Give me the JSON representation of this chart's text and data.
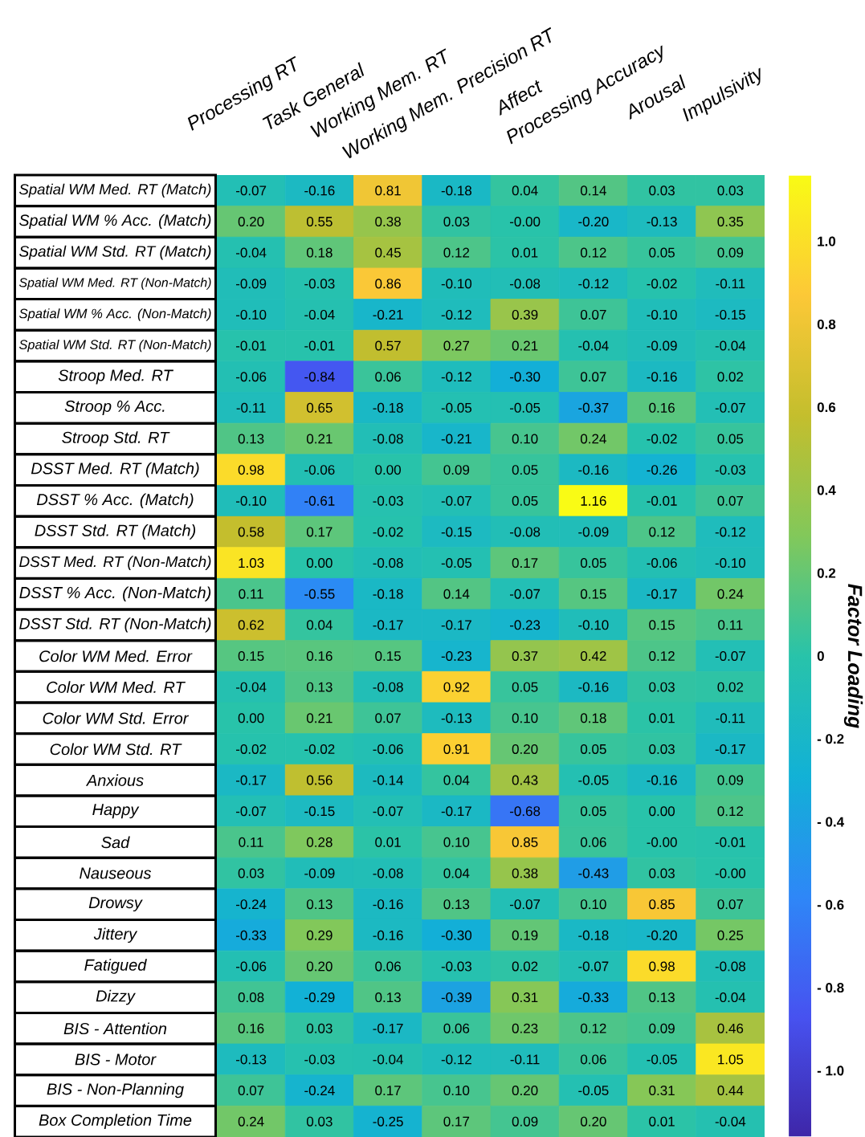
{
  "chart_data": {
    "type": "heatmap",
    "clabel": "Factor Loading",
    "categories": [
      "Processing RT",
      "Task General",
      "Working Mem. RT",
      "Working Mem. Precision RT",
      "Affect",
      "Processing Accuracy",
      "Arousal",
      "Impulsivity"
    ],
    "y_categories": [
      "Spatial WM Med. RT (Match)",
      "Spatial WM % Acc. (Match)",
      "Spatial WM Std. RT (Match)",
      "Spatial WM Med. RT (Non-Match)",
      "Spatial WM % Acc. (Non-Match)",
      "Spatial WM Std. RT (Non-Match)",
      "Stroop Med. RT",
      "Stroop % Acc.",
      "Stroop Std. RT",
      "DSST Med. RT (Match)",
      "DSST % Acc. (Match)",
      "DSST Std. RT (Match)",
      "DSST Med. RT (Non-Match)",
      "DSST % Acc. (Non-Match)",
      "DSST Std. RT (Non-Match)",
      "Color WM Med. Error",
      "Color WM Med. RT",
      "Color WM Std. Error",
      "Color WM Std. RT",
      "Anxious",
      "Happy",
      "Sad",
      "Nauseous",
      "Drowsy",
      "Jittery",
      "Fatigued",
      "Dizzy",
      "BIS - Attention",
      "BIS - Motor",
      "BIS - Non-Planning",
      "Box Completion Time"
    ],
    "cells": [
      [
        -0.07,
        -0.16,
        0.81,
        -0.18,
        0.04,
        0.14,
        0.03,
        0.03
      ],
      [
        0.2,
        0.55,
        0.38,
        0.03,
        0.0,
        -0.2,
        -0.13,
        0.35
      ],
      [
        -0.04,
        0.18,
        0.45,
        0.12,
        0.01,
        0.12,
        0.05,
        0.09
      ],
      [
        -0.09,
        -0.03,
        0.86,
        -0.1,
        -0.08,
        -0.12,
        -0.02,
        -0.11
      ],
      [
        -0.1,
        -0.04,
        -0.21,
        -0.12,
        0.39,
        0.07,
        -0.1,
        -0.15
      ],
      [
        -0.01,
        -0.01,
        0.57,
        0.27,
        0.21,
        -0.04,
        -0.09,
        -0.04
      ],
      [
        -0.06,
        -0.84,
        0.06,
        -0.12,
        -0.3,
        0.07,
        -0.16,
        0.02
      ],
      [
        -0.11,
        0.65,
        -0.18,
        -0.05,
        -0.05,
        -0.37,
        0.16,
        -0.07
      ],
      [
        0.13,
        0.21,
        -0.08,
        -0.21,
        0.1,
        0.24,
        -0.02,
        0.05
      ],
      [
        0.98,
        -0.06,
        0.0,
        0.09,
        0.05,
        -0.16,
        -0.26,
        -0.03
      ],
      [
        -0.1,
        -0.61,
        -0.03,
        -0.07,
        0.05,
        1.16,
        -0.01,
        0.07
      ],
      [
        0.58,
        0.17,
        -0.02,
        -0.15,
        -0.08,
        -0.09,
        0.12,
        -0.12
      ],
      [
        1.03,
        0.0,
        -0.08,
        -0.05,
        0.17,
        0.05,
        -0.06,
        -0.1
      ],
      [
        0.11,
        -0.55,
        -0.18,
        0.14,
        -0.07,
        0.15,
        -0.17,
        0.24
      ],
      [
        0.62,
        0.04,
        -0.17,
        -0.17,
        -0.23,
        -0.1,
        0.15,
        0.11
      ],
      [
        0.15,
        0.16,
        0.15,
        -0.23,
        0.37,
        0.42,
        0.12,
        -0.07
      ],
      [
        -0.04,
        0.13,
        -0.08,
        0.92,
        0.05,
        -0.16,
        0.03,
        0.02
      ],
      [
        0.0,
        0.21,
        0.07,
        -0.13,
        0.1,
        0.18,
        0.01,
        -0.11
      ],
      [
        -0.02,
        -0.02,
        -0.06,
        0.91,
        0.2,
        0.05,
        0.03,
        -0.17
      ],
      [
        -0.17,
        0.56,
        -0.14,
        0.04,
        0.43,
        -0.05,
        -0.16,
        0.09
      ],
      [
        -0.07,
        -0.15,
        -0.07,
        -0.17,
        -0.68,
        0.05,
        0.0,
        0.12
      ],
      [
        0.11,
        0.28,
        0.01,
        0.1,
        0.85,
        0.06,
        0.0,
        -0.01
      ],
      [
        0.03,
        -0.09,
        -0.08,
        0.04,
        0.38,
        -0.43,
        0.03,
        0.0
      ],
      [
        -0.24,
        0.13,
        -0.16,
        0.13,
        -0.07,
        0.1,
        0.85,
        0.07
      ],
      [
        -0.33,
        0.29,
        -0.16,
        -0.3,
        0.19,
        -0.18,
        -0.2,
        0.25
      ],
      [
        -0.06,
        0.2,
        0.06,
        -0.03,
        0.02,
        -0.07,
        0.98,
        -0.08
      ],
      [
        0.08,
        -0.29,
        0.13,
        -0.39,
        0.31,
        -0.33,
        0.13,
        -0.04
      ],
      [
        0.16,
        0.03,
        -0.17,
        0.06,
        0.23,
        0.12,
        0.09,
        0.46
      ],
      [
        -0.13,
        -0.03,
        -0.04,
        -0.12,
        -0.11,
        0.06,
        -0.05,
        1.05
      ],
      [
        0.07,
        -0.24,
        0.17,
        0.1,
        0.2,
        -0.05,
        0.31,
        0.44
      ],
      [
        0.24,
        0.03,
        -0.25,
        0.17,
        0.09,
        0.2,
        0.01,
        -0.04
      ]
    ],
    "cell_labels": [
      [
        "-0.07",
        "-0.16",
        "0.81",
        "-0.18",
        "0.04",
        "0.14",
        "0.03",
        "0.03"
      ],
      [
        "0.20",
        "0.55",
        "0.38",
        "0.03",
        "-0.00",
        "-0.20",
        "-0.13",
        "0.35"
      ],
      [
        "-0.04",
        "0.18",
        "0.45",
        "0.12",
        "0.01",
        "0.12",
        "0.05",
        "0.09"
      ],
      [
        "-0.09",
        "-0.03",
        "0.86",
        "-0.10",
        "-0.08",
        "-0.12",
        "-0.02",
        "-0.11"
      ],
      [
        "-0.10",
        "-0.04",
        "-0.21",
        "-0.12",
        "0.39",
        "0.07",
        "-0.10",
        "-0.15"
      ],
      [
        "-0.01",
        "-0.01",
        "0.57",
        "0.27",
        "0.21",
        "-0.04",
        "-0.09",
        "-0.04"
      ],
      [
        "-0.06",
        "-0.84",
        "0.06",
        "-0.12",
        "-0.30",
        "0.07",
        "-0.16",
        "0.02"
      ],
      [
        "-0.11",
        "0.65",
        "-0.18",
        "-0.05",
        "-0.05",
        "-0.37",
        "0.16",
        "-0.07"
      ],
      [
        "0.13",
        "0.21",
        "-0.08",
        "-0.21",
        "0.10",
        "0.24",
        "-0.02",
        "0.05"
      ],
      [
        "0.98",
        "-0.06",
        "0.00",
        "0.09",
        "0.05",
        "-0.16",
        "-0.26",
        "-0.03"
      ],
      [
        "-0.10",
        "-0.61",
        "-0.03",
        "-0.07",
        "0.05",
        "1.16",
        "-0.01",
        "0.07"
      ],
      [
        "0.58",
        "0.17",
        "-0.02",
        "-0.15",
        "-0.08",
        "-0.09",
        "0.12",
        "-0.12"
      ],
      [
        "1.03",
        "0.00",
        "-0.08",
        "-0.05",
        "0.17",
        "0.05",
        "-0.06",
        "-0.10"
      ],
      [
        "0.11",
        "-0.55",
        "-0.18",
        "0.14",
        "-0.07",
        "0.15",
        "-0.17",
        "0.24"
      ],
      [
        "0.62",
        "0.04",
        "-0.17",
        "-0.17",
        "-0.23",
        "-0.10",
        "0.15",
        "0.11"
      ],
      [
        "0.15",
        "0.16",
        "0.15",
        "-0.23",
        "0.37",
        "0.42",
        "0.12",
        "-0.07"
      ],
      [
        "-0.04",
        "0.13",
        "-0.08",
        "0.92",
        "0.05",
        "-0.16",
        "0.03",
        "0.02"
      ],
      [
        "0.00",
        "0.21",
        "0.07",
        "-0.13",
        "0.10",
        "0.18",
        "0.01",
        "-0.11"
      ],
      [
        "-0.02",
        "-0.02",
        "-0.06",
        "0.91",
        "0.20",
        "0.05",
        "0.03",
        "-0.17"
      ],
      [
        "-0.17",
        "0.56",
        "-0.14",
        "0.04",
        "0.43",
        "-0.05",
        "-0.16",
        "0.09"
      ],
      [
        "-0.07",
        "-0.15",
        "-0.07",
        "-0.17",
        "-0.68",
        "0.05",
        "0.00",
        "0.12"
      ],
      [
        "0.11",
        "0.28",
        "0.01",
        "0.10",
        "0.85",
        "0.06",
        "-0.00",
        "-0.01"
      ],
      [
        "0.03",
        "-0.09",
        "-0.08",
        "0.04",
        "0.38",
        "-0.43",
        "0.03",
        "-0.00"
      ],
      [
        "-0.24",
        "0.13",
        "-0.16",
        "0.13",
        "-0.07",
        "0.10",
        "0.85",
        "0.07"
      ],
      [
        "-0.33",
        "0.29",
        "-0.16",
        "-0.30",
        "0.19",
        "-0.18",
        "-0.20",
        "0.25"
      ],
      [
        "-0.06",
        "0.20",
        "0.06",
        "-0.03",
        "0.02",
        "-0.07",
        "0.98",
        "-0.08"
      ],
      [
        "0.08",
        "-0.29",
        "0.13",
        "-0.39",
        "0.31",
        "-0.33",
        "0.13",
        "-0.04"
      ],
      [
        "0.16",
        "0.03",
        "-0.17",
        "0.06",
        "0.23",
        "0.12",
        "0.09",
        "0.46"
      ],
      [
        "-0.13",
        "-0.03",
        "-0.04",
        "-0.12",
        "-0.11",
        "0.06",
        "-0.05",
        "1.05"
      ],
      [
        "0.07",
        "-0.24",
        "0.17",
        "0.10",
        "0.20",
        "-0.05",
        "0.31",
        "0.44"
      ],
      [
        "0.24",
        "0.03",
        "-0.25",
        "0.17",
        "0.09",
        "0.20",
        "0.01",
        "-0.04"
      ]
    ],
    "clim": [
      -1.16,
      1.16
    ],
    "cticks": [
      {
        "value": -1.0,
        "label": "- 1.0"
      },
      {
        "value": -0.8,
        "label": "- 0.8"
      },
      {
        "value": -0.6,
        "label": "- 0.6"
      },
      {
        "value": -0.4,
        "label": "- 0.4"
      },
      {
        "value": -0.2,
        "label": "- 0.2"
      },
      0,
      0.2,
      0.4,
      0.6,
      0.8,
      {
        "value": 1.0,
        "label": "1.0"
      }
    ]
  }
}
